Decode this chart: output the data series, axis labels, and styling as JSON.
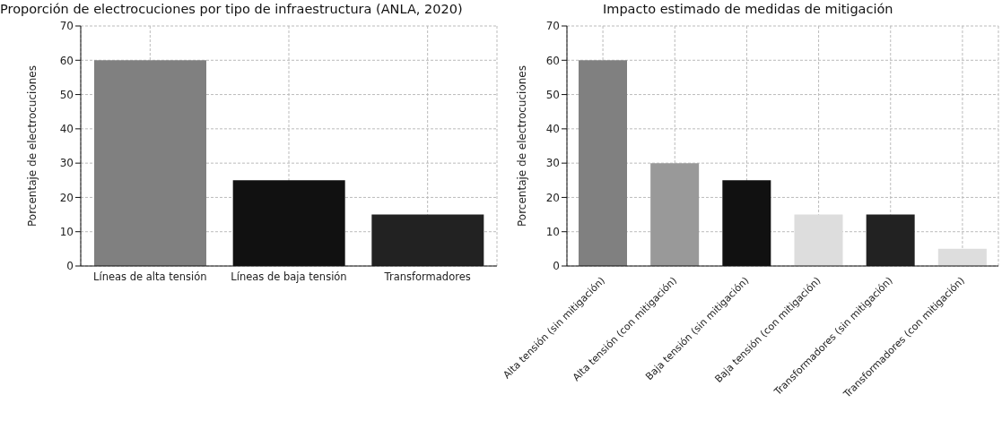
{
  "chart_data": [
    {
      "type": "bar",
      "title": "Proporción de electrocuciones por tipo de infraestructura (ANLA, 2020)",
      "ylabel": "Porcentaje de electrocuciones",
      "categories": [
        "Líneas de alta tensión",
        "Líneas de baja tensión",
        "Transformadores"
      ],
      "values": [
        60,
        25,
        15
      ],
      "colors": [
        "#808080",
        "#111111",
        "#222222"
      ],
      "ylim": [
        0,
        70
      ],
      "yticks": [
        0,
        10,
        20,
        30,
        40,
        50,
        60,
        70
      ],
      "grid": true
    },
    {
      "type": "bar",
      "title": "Impacto estimado de medidas de mitigación",
      "ylabel": "Porcentaje de electrocuciones",
      "categories": [
        "Alta tensión (sin mitigación)",
        "Alta tensión (con mitigación)",
        "Baja tensión (sin mitigación)",
        "Baja tensión (con mitigación)",
        "Transformadores (sin mitigación)",
        "Transformadores (con mitigación)"
      ],
      "values": [
        60,
        30,
        25,
        15,
        15,
        5
      ],
      "colors": [
        "#808080",
        "#999999",
        "#111111",
        "#dddddd",
        "#222222",
        "#dddddd"
      ],
      "ylim": [
        0,
        70
      ],
      "yticks": [
        0,
        10,
        20,
        30,
        40,
        50,
        60,
        70
      ],
      "grid": true
    }
  ]
}
